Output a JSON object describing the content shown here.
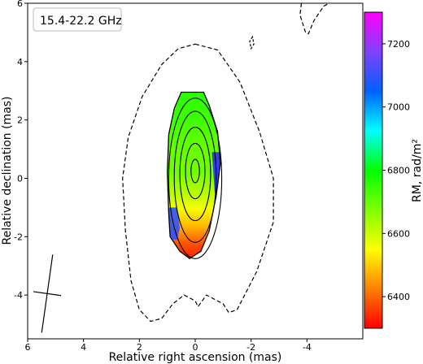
{
  "chart_data": {
    "type": "heatmap",
    "label_box": "15.4-22.2 GHz",
    "xlabel": "Relative right ascension (mas)",
    "ylabel": "Relative declination (mas)",
    "xlim": [
      6,
      -6
    ],
    "ylim": [
      -5.5,
      6
    ],
    "x_ticks": [
      6,
      4,
      2,
      0,
      -2,
      -4
    ],
    "x_tick_labels": [
      "6",
      "4",
      "2",
      "0",
      "-2",
      "-4"
    ],
    "y_ticks": [
      -4,
      -2,
      0,
      2,
      4,
      6
    ],
    "y_tick_labels": [
      "-4",
      "-2",
      "0",
      "2",
      "4",
      "6"
    ],
    "colorbar": {
      "label": "RM, rad/m²",
      "range": [
        6300,
        7300
      ],
      "ticks": [
        6400,
        6600,
        6800,
        7000,
        7200
      ],
      "tick_labels": [
        "6400",
        "6600",
        "6800",
        "7000",
        "7200"
      ],
      "colors": [
        "#ff0000",
        "#ff8000",
        "#ffff00",
        "#80ff00",
        "#00ff00",
        "#00ffff",
        "#0060ff",
        "#8040ff",
        "#ff00ff"
      ]
    },
    "rm_region_outline": [
      [
        0.0,
        2.95
      ],
      [
        0.5,
        2.95
      ],
      [
        0.75,
        2.4
      ],
      [
        0.95,
        1.5
      ],
      [
        1.0,
        0.2
      ],
      [
        0.95,
        -1.2
      ],
      [
        0.9,
        -2.0
      ],
      [
        0.55,
        -2.5
      ],
      [
        0.2,
        -2.75
      ],
      [
        -0.2,
        -2.5
      ],
      [
        -0.5,
        -1.8
      ],
      [
        -0.75,
        -0.6
      ],
      [
        -0.9,
        0.5
      ],
      [
        -0.8,
        1.6
      ],
      [
        -0.5,
        2.5
      ],
      [
        -0.3,
        2.95
      ]
    ],
    "rm_field": [
      {
        "dec": 2.9,
        "rm": 6760
      },
      {
        "dec": 2.0,
        "rm": 6740
      },
      {
        "dec": 1.0,
        "rm": 6700
      },
      {
        "dec": 0.2,
        "rm": 6690
      },
      {
        "dec": -0.5,
        "rm": 6620
      },
      {
        "dec": -1.0,
        "rm": 6560
      },
      {
        "dec": -1.6,
        "rm": 6480
      },
      {
        "dec": -2.2,
        "rm": 6380
      },
      {
        "dec": -2.7,
        "rm": 6330
      }
    ],
    "contours_solid": [
      {
        "ra": 0.0,
        "dec": 0.25,
        "rx": 0.15,
        "ry": 0.4
      },
      {
        "ra": 0.0,
        "dec": 0.25,
        "rx": 0.35,
        "ry": 0.95
      },
      {
        "ra": 0.0,
        "dec": 0.15,
        "rx": 0.55,
        "ry": 1.6
      },
      {
        "ra": 0.0,
        "dec": 0.05,
        "rx": 0.75,
        "ry": 2.25
      },
      {
        "ra": 0.0,
        "dec": 0.0,
        "rx": 0.95,
        "ry": 2.75
      }
    ],
    "contour_dashed_outer": [
      [
        0.0,
        4.6
      ],
      [
        -0.8,
        4.4
      ],
      [
        -1.6,
        3.3
      ],
      [
        -2.3,
        1.6
      ],
      [
        -2.8,
        0.0
      ],
      [
        -2.8,
        -1.5
      ],
      [
        -2.2,
        -3.2
      ],
      [
        -1.5,
        -4.5
      ],
      [
        -1.2,
        -4.6
      ],
      [
        -1.0,
        -4.3
      ],
      [
        -0.4,
        -4.0
      ],
      [
        -0.1,
        -4.4
      ],
      [
        0.0,
        -4.2
      ],
      [
        0.4,
        -4.0
      ],
      [
        0.8,
        -4.3
      ],
      [
        1.2,
        -4.8
      ],
      [
        1.6,
        -4.9
      ],
      [
        2.0,
        -4.5
      ],
      [
        2.3,
        -3.5
      ],
      [
        2.5,
        -1.8
      ],
      [
        2.6,
        0.0
      ],
      [
        2.4,
        1.4
      ],
      [
        1.9,
        2.8
      ],
      [
        1.2,
        3.9
      ],
      [
        0.6,
        4.45
      ],
      [
        0.0,
        4.6
      ]
    ],
    "contour_dashed_top": [
      [
        -3.8,
        6.0
      ],
      [
        -3.75,
        5.6
      ],
      [
        -3.95,
        5.0
      ],
      [
        -4.05,
        4.95
      ],
      [
        -4.25,
        5.4
      ],
      [
        -4.6,
        5.9
      ],
      [
        -4.8,
        6.0
      ]
    ],
    "contour_dashed_blob": [
      [
        -2.05,
        4.85
      ],
      [
        -1.95,
        4.7
      ],
      [
        -2.0,
        4.45
      ],
      [
        -2.1,
        4.6
      ],
      [
        -2.05,
        4.85
      ]
    ],
    "beam": {
      "ra": 5.3,
      "dec": -3.95,
      "major_mas": 2.7,
      "minor_mas": 1.0,
      "pa_deg": -8
    }
  }
}
